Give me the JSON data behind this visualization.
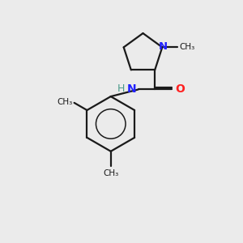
{
  "bg_color": "#ebebeb",
  "bond_color": "#1a1a1a",
  "N_color": "#2020ff",
  "O_color": "#ff2020",
  "H_color": "#4a9a8a",
  "line_width": 1.6,
  "figsize": [
    3.0,
    3.0
  ],
  "dpi": 100,
  "xlim": [
    0,
    10
  ],
  "ylim": [
    0,
    10
  ]
}
